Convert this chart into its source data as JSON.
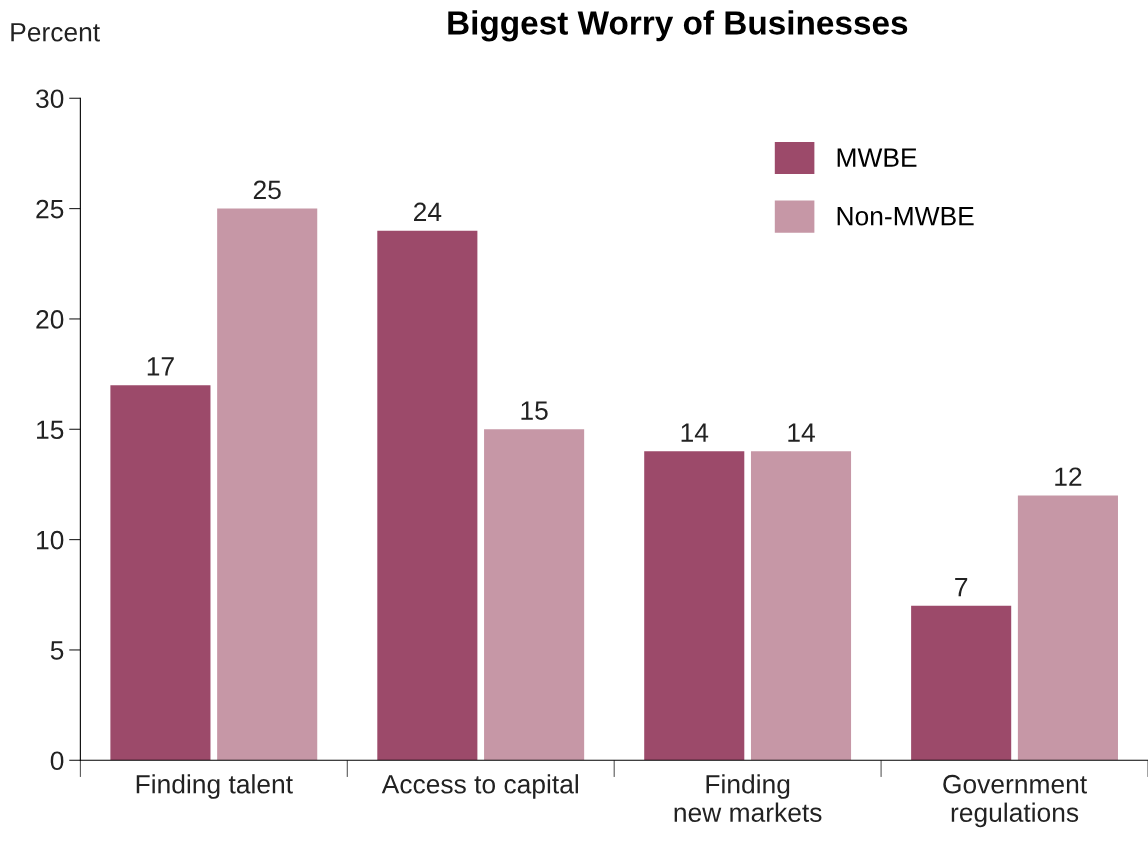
{
  "chart_data": {
    "type": "bar",
    "title": "Biggest Worry of Businesses",
    "ylabel": "Percent",
    "categories": [
      "Finding talent",
      "Access to capital",
      "Finding\nnew markets",
      "Government\nregulations"
    ],
    "series": [
      {
        "name": "MWBE",
        "color": "#9c4a6a",
        "values": [
          17,
          24,
          14,
          7
        ]
      },
      {
        "name": "Non-MWBE",
        "color": "#c697a6",
        "values": [
          25,
          15,
          14,
          12
        ]
      }
    ],
    "ylim": [
      0,
      30
    ],
    "yticks": [
      0,
      5,
      10,
      15,
      20,
      25,
      30
    ],
    "data_labels": true,
    "legend": "top right",
    "grid": false
  }
}
